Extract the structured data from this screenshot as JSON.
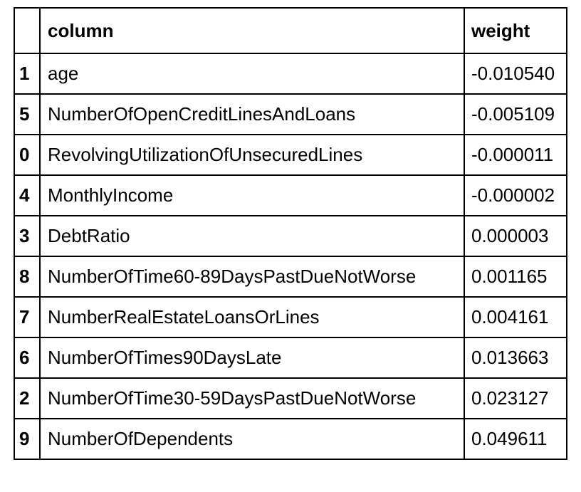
{
  "table": {
    "headers": {
      "index": "",
      "column": "column",
      "weight": "weight"
    },
    "rows": [
      {
        "index": "1",
        "column": "age",
        "weight": "-0.010540"
      },
      {
        "index": "5",
        "column": "NumberOfOpenCreditLinesAndLoans",
        "weight": "-0.005109"
      },
      {
        "index": "0",
        "column": "RevolvingUtilizationOfUnsecuredLines",
        "weight": "-0.000011"
      },
      {
        "index": "4",
        "column": "MonthlyIncome",
        "weight": "-0.000002"
      },
      {
        "index": "3",
        "column": "DebtRatio",
        "weight": "0.000003"
      },
      {
        "index": "8",
        "column": "NumberOfTime60-89DaysPastDueNotWorse",
        "weight": "0.001165"
      },
      {
        "index": "7",
        "column": "NumberRealEstateLoansOrLines",
        "weight": "0.004161"
      },
      {
        "index": "6",
        "column": "NumberOfTimes90DaysLate",
        "weight": "0.013663"
      },
      {
        "index": "2",
        "column": "NumberOfTime30-59DaysPastDueNotWorse",
        "weight": "0.023127"
      },
      {
        "index": "9",
        "column": "NumberOfDependents",
        "weight": "0.049611"
      }
    ]
  }
}
